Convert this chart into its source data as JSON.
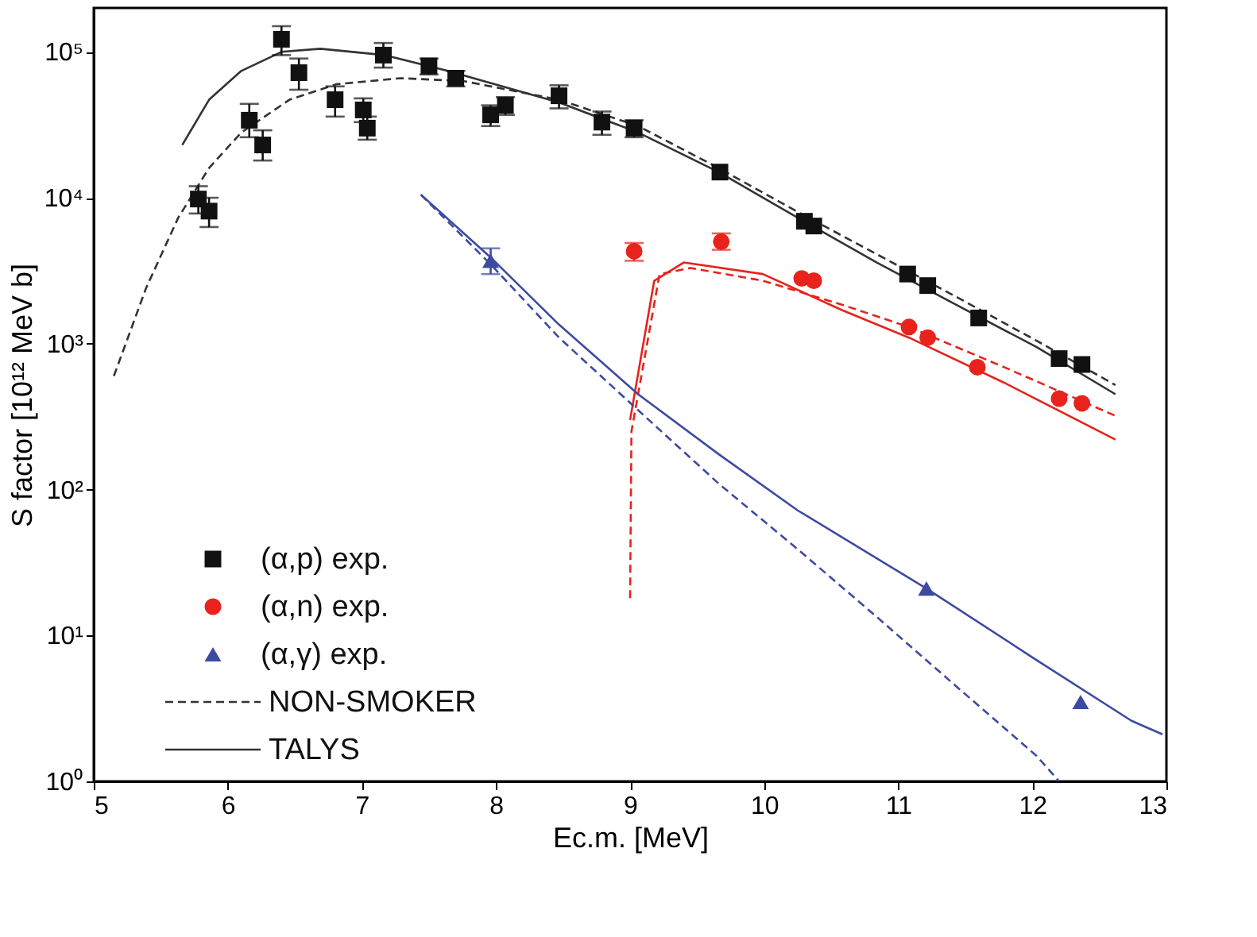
{
  "chart_data": {
    "type": "scatter",
    "xlabel": "Ec.m. [MeV]",
    "ylabel": "S factor [10¹² MeV b]",
    "xlim": [
      5,
      13
    ],
    "xticks": [
      5,
      6,
      7,
      8,
      9,
      10,
      11,
      12,
      13
    ],
    "ylim": [
      1,
      200000
    ],
    "yticks": [
      {
        "value": 1,
        "label": "10⁰"
      },
      {
        "value": 10,
        "label": "10¹"
      },
      {
        "value": 100,
        "label": "10²"
      },
      {
        "value": 1000,
        "label": "10³"
      },
      {
        "value": 10000,
        "label": "10⁴"
      },
      {
        "value": 100000,
        "label": "10⁵"
      }
    ],
    "log": true,
    "grid": false,
    "legend": "bottom left",
    "series": [
      {
        "name": "(α,p) exp.",
        "marker": "square",
        "color": "#111111",
        "x": [
          5.78,
          5.86,
          6.16,
          6.26,
          6.4,
          6.53,
          6.8,
          7.01,
          7.04,
          7.16,
          7.5,
          7.7,
          7.96,
          8.07,
          8.47,
          8.79,
          9.03,
          9.67,
          10.3,
          10.37,
          11.07,
          11.22,
          11.6,
          12.2,
          12.37
        ],
        "values": [
          9800,
          8100,
          34000,
          23000,
          122000,
          72000,
          47000,
          40000,
          30000,
          95000,
          80000,
          66000,
          37000,
          43000,
          50000,
          33000,
          30000,
          15000,
          6900,
          6400,
          3000,
          2500,
          1500,
          790,
          720
        ],
        "errors": [
          [
            7800,
            12000
          ],
          [
            6300,
            10000
          ],
          [
            26000,
            44000
          ],
          [
            18000,
            29000
          ],
          [
            95000,
            150000
          ],
          [
            55000,
            90000
          ],
          [
            36000,
            58000
          ],
          [
            33000,
            48000
          ],
          [
            25000,
            36000
          ],
          [
            78000,
            115000
          ],
          [
            70000,
            90000
          ],
          [
            58000,
            74000
          ],
          [
            31000,
            43000
          ],
          [
            37000,
            49000
          ],
          [
            41000,
            59000
          ],
          [
            27000,
            39000
          ],
          [
            26000,
            34000
          ],
          null,
          null,
          null,
          null,
          null,
          null,
          null,
          null
        ]
      },
      {
        "name": "(α,n) exp.",
        "marker": "circle",
        "color": "#e8221c",
        "x": [
          9.03,
          9.68,
          10.28,
          10.37,
          11.08,
          11.22,
          11.59,
          12.2,
          12.37
        ],
        "values": [
          4300,
          5000,
          2800,
          2700,
          1300,
          1100,
          690,
          420,
          390
        ],
        "errors": [
          [
            3700,
            4900
          ],
          [
            4400,
            5700
          ],
          null,
          null,
          null,
          null,
          null,
          null,
          null
        ]
      },
      {
        "name": "(α,γ) exp.",
        "marker": "triangle",
        "color": "#3d4aa0",
        "x": [
          7.96,
          11.21,
          12.36
        ],
        "values": [
          3700,
          21,
          3.5
        ],
        "errors": [
          [
            3000,
            4500
          ],
          null,
          null
        ]
      },
      {
        "name": "NON-SMOKER",
        "type": "line",
        "line_style": "dashed",
        "color": "#333333",
        "x": [
          5.15,
          5.39,
          5.63,
          5.86,
          6.1,
          6.46,
          6.81,
          7.29,
          7.76,
          8.47,
          9.06,
          9.66,
          10.25,
          10.84,
          11.43,
          12.03,
          12.62
        ],
        "values": [
          600,
          2400,
          7300,
          16000,
          28000,
          47000,
          60000,
          66000,
          63000,
          47000,
          31000,
          16000,
          8000,
          4100,
          2100,
          1050,
          520
        ]
      },
      {
        "name": "TALYS",
        "type": "line",
        "line_style": "solid",
        "color": "#333333",
        "x": [
          5.66,
          5.86,
          6.1,
          6.4,
          6.69,
          7.17,
          7.64,
          8.47,
          9.06,
          9.66,
          10.25,
          10.84,
          11.43,
          12.03,
          12.62
        ],
        "values": [
          23000,
          47000,
          74000,
          100000,
          105000,
          95000,
          74000,
          45000,
          28000,
          15000,
          7300,
          3600,
          1850,
          950,
          450
        ]
      },
      {
        "type": "line",
        "line_style": "dashed",
        "color": "#e8221c",
        "x": [
          9.0,
          9.01,
          9.22,
          9.45,
          9.99,
          10.58,
          11.08,
          11.79,
          12.62
        ],
        "values": [
          18,
          250,
          3000,
          3300,
          2700,
          1850,
          1300,
          690,
          320
        ]
      },
      {
        "type": "line",
        "line_style": "solid",
        "color": "#e8221c",
        "x": [
          9.0,
          9.18,
          9.4,
          9.99,
          10.58,
          11.08,
          11.79,
          12.62
        ],
        "values": [
          300,
          2700,
          3600,
          3000,
          1700,
          1100,
          540,
          220
        ]
      },
      {
        "type": "line",
        "line_style": "dashed",
        "color": "#3d4aa0",
        "x": [
          7.44,
          7.96,
          8.47,
          9.06,
          9.66,
          10.25,
          10.84,
          11.43,
          12.03,
          12.2
        ],
        "values": [
          10500,
          3500,
          1100,
          350,
          110,
          39,
          13.4,
          4.5,
          1.5,
          1.0
        ]
      },
      {
        "type": "line",
        "line_style": "solid",
        "color": "#3d4aa0",
        "x": [
          7.44,
          7.96,
          8.47,
          9.06,
          9.66,
          10.25,
          11.21,
          12.03,
          12.74,
          12.97
        ],
        "values": [
          10500,
          3900,
          1350,
          450,
          175,
          72,
          21,
          6.8,
          2.6,
          2.1
        ]
      }
    ]
  }
}
